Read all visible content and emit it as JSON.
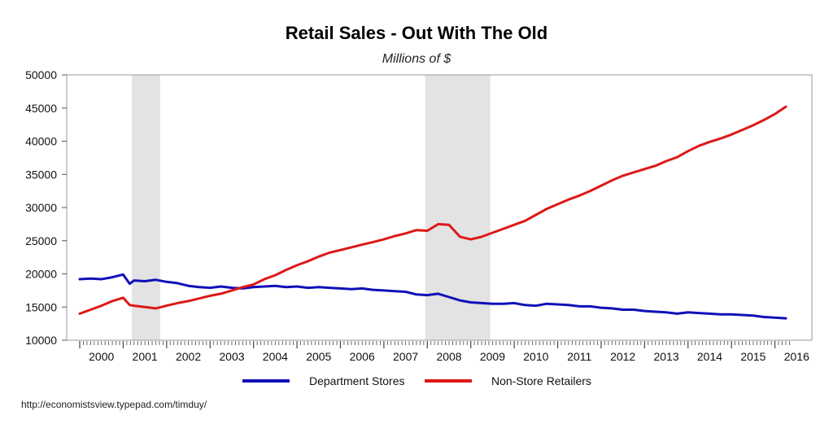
{
  "chart_data": {
    "type": "line",
    "title": "Retail Sales - Out With The Old",
    "subtitle": "Millions of $",
    "xlabel": "",
    "ylabel": "",
    "ylim": [
      10000,
      50000
    ],
    "yticks": [
      10000,
      15000,
      20000,
      25000,
      30000,
      35000,
      40000,
      45000,
      50000
    ],
    "xlim": [
      1999.7,
      2016.85
    ],
    "xticks": [
      "2000",
      "2001",
      "2002",
      "2003",
      "2004",
      "2005",
      "2006",
      "2007",
      "2008",
      "2009",
      "2010",
      "2011",
      "2012",
      "2013",
      "2014",
      "2015",
      "2016"
    ],
    "grid": false,
    "legend_position": "bottom",
    "recessions": [
      [
        2001.2,
        2001.85
      ],
      [
        2007.95,
        2009.45
      ]
    ],
    "series": [
      {
        "name": "Department Stores",
        "color": "#1010b8",
        "x": [
          2000.0,
          2000.25,
          2000.5,
          2000.75,
          2001.0,
          2001.15,
          2001.25,
          2001.5,
          2001.75,
          2002.0,
          2002.25,
          2002.5,
          2002.75,
          2003.0,
          2003.25,
          2003.5,
          2003.75,
          2004.0,
          2004.25,
          2004.5,
          2004.75,
          2005.0,
          2005.25,
          2005.5,
          2005.75,
          2006.0,
          2006.25,
          2006.5,
          2006.75,
          2007.0,
          2007.25,
          2007.5,
          2007.75,
          2008.0,
          2008.25,
          2008.5,
          2008.75,
          2009.0,
          2009.25,
          2009.5,
          2009.75,
          2010.0,
          2010.25,
          2010.5,
          2010.75,
          2011.0,
          2011.25,
          2011.5,
          2011.75,
          2012.0,
          2012.25,
          2012.5,
          2012.75,
          2013.0,
          2013.25,
          2013.5,
          2013.75,
          2014.0,
          2014.25,
          2014.5,
          2014.75,
          2015.0,
          2015.25,
          2015.5,
          2015.75,
          2016.0,
          2016.25
        ],
        "values": [
          19200,
          19300,
          19200,
          19500,
          19900,
          18500,
          19000,
          18900,
          19100,
          18800,
          18600,
          18200,
          18000,
          17900,
          18100,
          17900,
          17800,
          18000,
          18100,
          18200,
          18000,
          18100,
          17900,
          18000,
          17900,
          17800,
          17700,
          17800,
          17600,
          17500,
          17400,
          17300,
          16900,
          16800,
          17000,
          16500,
          16000,
          15700,
          15600,
          15500,
          15500,
          15600,
          15300,
          15200,
          15500,
          15400,
          15300,
          15100,
          15100,
          14900,
          14800,
          14600,
          14600,
          14400,
          14300,
          14200,
          14000,
          14200,
          14100,
          14000,
          13900,
          13900,
          13800,
          13700,
          13500,
          13400,
          13300
        ]
      },
      {
        "name": "Non-Store Retailers",
        "color": "#dd1818",
        "x": [
          2000.0,
          2000.25,
          2000.5,
          2000.75,
          2001.0,
          2001.15,
          2001.25,
          2001.5,
          2001.75,
          2002.0,
          2002.25,
          2002.5,
          2002.75,
          2003.0,
          2003.25,
          2003.5,
          2003.75,
          2004.0,
          2004.25,
          2004.5,
          2004.75,
          2005.0,
          2005.25,
          2005.5,
          2005.75,
          2006.0,
          2006.25,
          2006.5,
          2006.75,
          2007.0,
          2007.25,
          2007.5,
          2007.75,
          2008.0,
          2008.25,
          2008.5,
          2008.75,
          2009.0,
          2009.25,
          2009.5,
          2009.75,
          2010.0,
          2010.25,
          2010.5,
          2010.75,
          2011.0,
          2011.25,
          2011.5,
          2011.75,
          2012.0,
          2012.25,
          2012.5,
          2012.75,
          2013.0,
          2013.25,
          2013.5,
          2013.75,
          2014.0,
          2014.25,
          2014.5,
          2014.75,
          2015.0,
          2015.25,
          2015.5,
          2015.75,
          2016.0,
          2016.25
        ],
        "values": [
          14000,
          14600,
          15200,
          15900,
          16400,
          15300,
          15200,
          15000,
          14800,
          15200,
          15600,
          15900,
          16300,
          16700,
          17000,
          17500,
          18000,
          18400,
          19200,
          19800,
          20600,
          21300,
          21900,
          22600,
          23200,
          23600,
          24000,
          24400,
          24800,
          25200,
          25700,
          26100,
          26600,
          26500,
          27500,
          27400,
          25600,
          25200,
          25600,
          26200,
          26800,
          27400,
          28000,
          28900,
          29800,
          30500,
          31200,
          31800,
          32500,
          33300,
          34100,
          34800,
          35300,
          35800,
          36300,
          37000,
          37600,
          38500,
          39300,
          39900,
          40400,
          41000,
          41700,
          42400,
          43200,
          44100,
          45200
        ]
      }
    ]
  },
  "source": "http://economistsview.typepad.com/timduy/"
}
